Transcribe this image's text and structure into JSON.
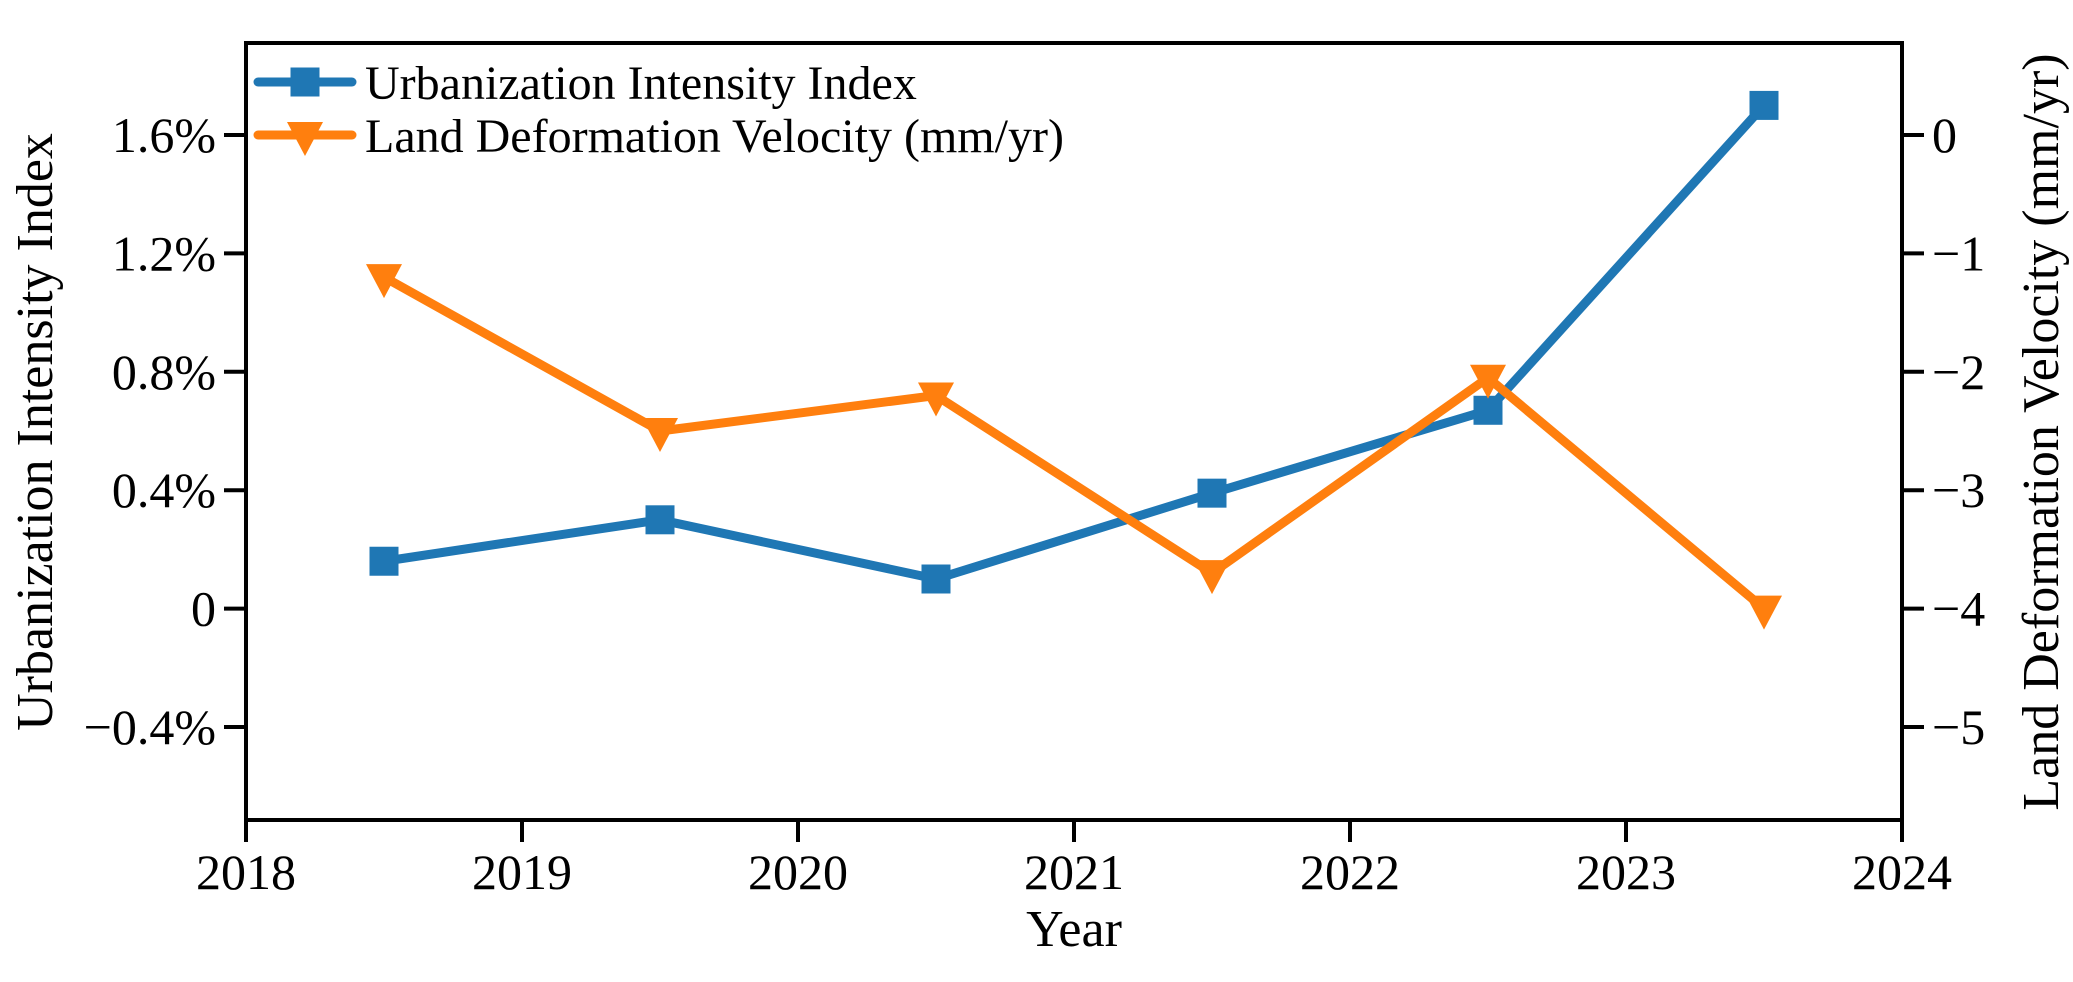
{
  "colors": {
    "series_blue": "#1f77b4",
    "series_orange": "#ff7f0e",
    "text": "#000000",
    "background": "#ffffff"
  },
  "legend": {
    "position": "upper-left",
    "frame": false,
    "items": [
      {
        "label": "Urbanization Intensity Index",
        "color": "#1f77b4",
        "marker": "square"
      },
      {
        "label": "Land Deformation Velocity (mm/yr)",
        "color": "#ff7f0e",
        "marker": "triangle-down"
      }
    ]
  },
  "chart_data": {
    "type": "line",
    "title": "",
    "xlabel": "Year",
    "x": [
      2018.5,
      2019.5,
      2020.5,
      2021.5,
      2022.5,
      2023.5
    ],
    "series": [
      {
        "name": "Urbanization Intensity Index",
        "axis": "left",
        "color": "#1f77b4",
        "marker": "square",
        "values": [
          0.16,
          0.3,
          0.1,
          0.39,
          0.67,
          1.7
        ],
        "unit": "%"
      },
      {
        "name": "Land Deformation Velocity (mm/yr)",
        "axis": "right",
        "color": "#ff7f0e",
        "marker": "triangle-down",
        "values": [
          -1.2,
          -2.5,
          -2.2,
          -3.7,
          -2.05,
          -4.0
        ],
        "unit": "mm/yr"
      }
    ],
    "xlim": [
      2018,
      2024
    ],
    "x_ticks": {
      "values": [
        2018,
        2019,
        2020,
        2021,
        2022,
        2023,
        2024
      ],
      "labels": [
        "2018",
        "2019",
        "2020",
        "2021",
        "2022",
        "2023",
        "2024"
      ]
    },
    "left_axis": {
      "label": "Urbanization Intensity Index",
      "tick_labels": [
        "1.6%",
        "1.2%",
        "0.8%",
        "0.4%",
        "0",
        "−0.4%"
      ],
      "tick_values": [
        1.6,
        1.2,
        0.8,
        0.4,
        0.0,
        -0.4
      ],
      "ylim": [
        -0.71,
        1.91
      ]
    },
    "right_axis": {
      "label": "Land Deformation Velocity (mm/yr)",
      "tick_labels": [
        "0",
        "−1",
        "−2",
        "−3",
        "−4",
        "−5"
      ],
      "tick_values": [
        0,
        -1,
        -2,
        -3,
        -4,
        -5
      ],
      "ylim": [
        -5.79,
        0.78
      ]
    },
    "grid": false
  }
}
